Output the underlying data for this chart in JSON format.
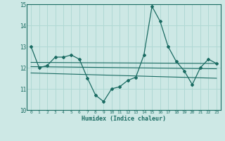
{
  "title": "",
  "xlabel": "Humidex (Indice chaleur)",
  "ylabel": "",
  "xlim": [
    -0.5,
    23.5
  ],
  "ylim": [
    10,
    15
  ],
  "yticks": [
    10,
    11,
    12,
    13,
    14,
    15
  ],
  "xticks": [
    0,
    1,
    2,
    3,
    4,
    5,
    6,
    7,
    8,
    9,
    10,
    11,
    12,
    13,
    14,
    15,
    16,
    17,
    18,
    19,
    20,
    21,
    22,
    23
  ],
  "bg_color": "#cde8e5",
  "line_color": "#1a6b62",
  "grid_color": "#b0d8d4",
  "line1_x": [
    0,
    1,
    2,
    3,
    4,
    5,
    6,
    7,
    8,
    9,
    10,
    11,
    12,
    13,
    14,
    15,
    16,
    17,
    18,
    19,
    20,
    21,
    22,
    23
  ],
  "line1_y": [
    13.0,
    12.0,
    12.1,
    12.5,
    12.5,
    12.6,
    12.4,
    11.5,
    10.7,
    10.4,
    11.0,
    11.1,
    11.4,
    11.55,
    12.6,
    14.9,
    14.2,
    13.0,
    12.3,
    11.85,
    11.2,
    12.0,
    12.4,
    12.2
  ],
  "line2_x": [
    0,
    23
  ],
  "line2_y": [
    12.25,
    12.2
  ],
  "line3_x": [
    0,
    23
  ],
  "line3_y": [
    12.05,
    11.95
  ],
  "line4_x": [
    0,
    23
  ],
  "line4_y": [
    11.75,
    11.5
  ]
}
